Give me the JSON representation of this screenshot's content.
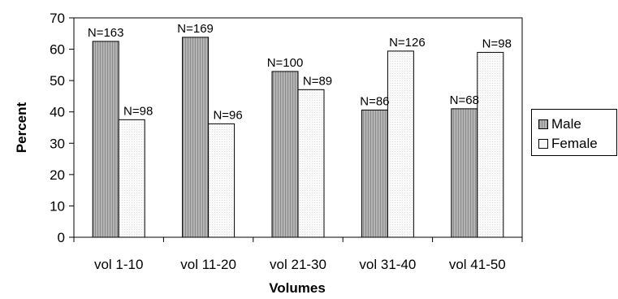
{
  "chart_data": {
    "type": "bar",
    "title": "",
    "xlabel": "Volumes",
    "ylabel": "Percent",
    "categories": [
      "vol 1-10",
      "vol 11-20",
      "vol 21-30",
      "vol 31-40",
      "vol 41-50"
    ],
    "series": [
      {
        "name": "Male",
        "color": "#a6a6a6",
        "values": [
          62.5,
          63.8,
          52.9,
          40.6,
          41.0
        ],
        "labels": [
          "N=163",
          "N=169",
          "N=100",
          "N=86",
          "N=68"
        ]
      },
      {
        "name": "Female",
        "color": "#f7f7f7",
        "values": [
          37.5,
          36.2,
          47.1,
          59.4,
          59.0
        ],
        "labels": [
          "N=98",
          "N=96",
          "N=89",
          "N=126",
          "N=98"
        ]
      }
    ],
    "ylim": [
      0,
      70
    ],
    "yticks": [
      0,
      10,
      20,
      30,
      40,
      50,
      60,
      70
    ],
    "grid": false,
    "legend_position": "right"
  }
}
